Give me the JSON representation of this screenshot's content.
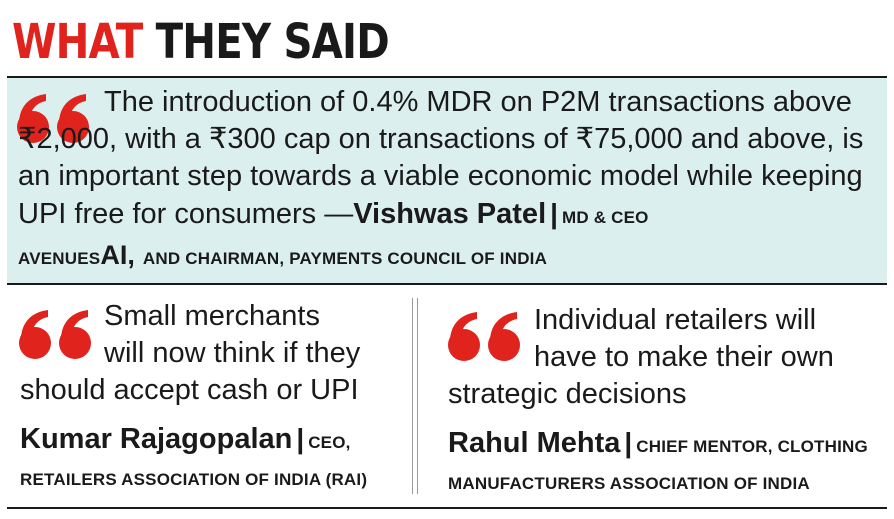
{
  "heading": {
    "red_part": "WHAT",
    "black_part": "THEY SAID"
  },
  "quote1": {
    "text_line1": "The introduction of 0.4% MDR on P2M transactions above",
    "text_rest": "₹2,000, with a ₹300 cap on transactions of ₹75,000 and above, is an important step towards a viable economic model while keeping UPI free for consumers —",
    "speaker": "Vishwas Patel",
    "separator": "|",
    "role": "MD & CEO",
    "org_prefix": "AVENUES",
    "org_ai": "AI,",
    "org_suffix": "AND CHAIRMAN, PAYMENTS COUNCIL OF INDIA"
  },
  "quote2": {
    "line1": "Small merchants",
    "line2": "will now think if they",
    "line3": "should accept cash or UPI",
    "speaker": "Kumar Rajagopalan",
    "separator": "|",
    "role": "CEO,",
    "org": "RETAILERS ASSOCIATION OF INDIA (RAI)"
  },
  "quote3": {
    "line1": "Individual retailers will",
    "line2": "have to make their own",
    "line3": "strategic decisions",
    "speaker": "Rahul Mehta",
    "separator": "|",
    "role": "CHIEF MENTOR, CLOTHING",
    "org": "MANUFACTURERS ASSOCIATION OF INDIA"
  },
  "colors": {
    "accent_red": "#e0231c",
    "panel_teal": "#dcefef",
    "text": "#1a1a1a"
  },
  "icons": {
    "quote_mark": "open-quote-icon"
  }
}
